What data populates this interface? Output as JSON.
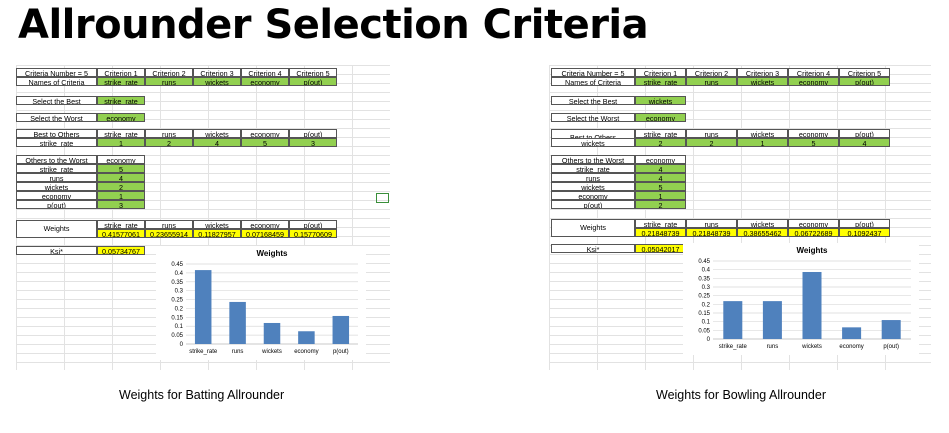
{
  "slide_title": "Allrounder Selection Criteria",
  "panels": [
    {
      "caption": "Weights for Batting Allrounder",
      "criteria_number_label": "Criteria Number = 5",
      "criterion_headers": [
        "Criterion 1",
        "Criterion 2",
        "Criterion 3",
        "Criterion 4",
        "Criterion 5"
      ],
      "names_label": "Names of Criteria",
      "criteria_names": [
        "strike_rate",
        "runs",
        "wickets",
        "economy",
        "p(out)"
      ],
      "select_best_label": "Select the Best",
      "select_best_value": "strike_rate",
      "select_worst_label": "Select the Worst",
      "select_worst_value": "economy",
      "bto_label": "Best to Others",
      "bto_row_label": "strike_rate",
      "bto_values": [
        "1",
        "2",
        "4",
        "5",
        "3"
      ],
      "otw_label": "Others to the Worst",
      "otw_header": "economy",
      "otw_rows": [
        {
          "name": "strike_rate",
          "value": "5"
        },
        {
          "name": "runs",
          "value": "4"
        },
        {
          "name": "wickets",
          "value": "2"
        },
        {
          "name": "economy",
          "value": "1"
        },
        {
          "name": "p(out)",
          "value": "3"
        }
      ],
      "weights_label": "Weights",
      "weight_values": [
        "0.41577061",
        "0.23655914",
        "0.11827957",
        "0.07168459",
        "0.15770609"
      ],
      "ksi_label": "Ksi*",
      "ksi_value": "0.05734767"
    },
    {
      "caption": "Weights for Bowling Allrounder",
      "criteria_number_label": "Criteria Number = 5",
      "criterion_headers": [
        "Criterion 1",
        "Criterion 2",
        "Criterion 3",
        "Criterion 4",
        "Criterion 5"
      ],
      "names_label": "Names of Criteria",
      "criteria_names": [
        "strike_rate",
        "runs",
        "wickets",
        "economy",
        "p(out)"
      ],
      "select_best_label": "Select the Best",
      "select_best_value": "wickets",
      "select_worst_label": "Select the Worst",
      "select_worst_value": "economy",
      "bto_label": "Best to Others",
      "bto_row_label": "wickets",
      "bto_values": [
        "2",
        "2",
        "1",
        "5",
        "4"
      ],
      "otw_label": "Others to the Worst",
      "otw_header": "economy",
      "otw_rows": [
        {
          "name": "strike_rate",
          "value": "4"
        },
        {
          "name": "runs",
          "value": "4"
        },
        {
          "name": "wickets",
          "value": "5"
        },
        {
          "name": "economy",
          "value": "1"
        },
        {
          "name": "p(out)",
          "value": "2"
        }
      ],
      "weights_label": "Weights",
      "weight_values": [
        "0.21848739",
        "0.21848739",
        "0.38655462",
        "0.06722689",
        "0.1092437"
      ],
      "ksi_label": "Ksi*",
      "ksi_value": "0.05042017"
    }
  ],
  "chart_data": [
    {
      "type": "bar",
      "title": "Weights",
      "categories": [
        "strike_rate",
        "runs",
        "wickets",
        "economy",
        "p(out)"
      ],
      "values": [
        0.41577061,
        0.23655914,
        0.11827957,
        0.07168459,
        0.15770609
      ],
      "ylim": [
        0,
        0.45
      ],
      "yticks": [
        "0",
        "0.05",
        "0.1",
        "0.15",
        "0.2",
        "0.25",
        "0.3",
        "0.35",
        "0.4",
        "0.45"
      ],
      "grid": true,
      "bar_color": "#4f81bd"
    },
    {
      "type": "bar",
      "title": "Weights",
      "categories": [
        "strike_rate",
        "runs",
        "wickets",
        "economy",
        "p(out)"
      ],
      "values": [
        0.21848739,
        0.21848739,
        0.38655462,
        0.06722689,
        0.1092437
      ],
      "ylim": [
        0,
        0.45
      ],
      "yticks": [
        "0",
        "0.05",
        "0.1",
        "0.15",
        "0.2",
        "0.25",
        "0.3",
        "0.35",
        "0.4",
        "0.45"
      ],
      "grid": true,
      "bar_color": "#4f81bd"
    }
  ]
}
